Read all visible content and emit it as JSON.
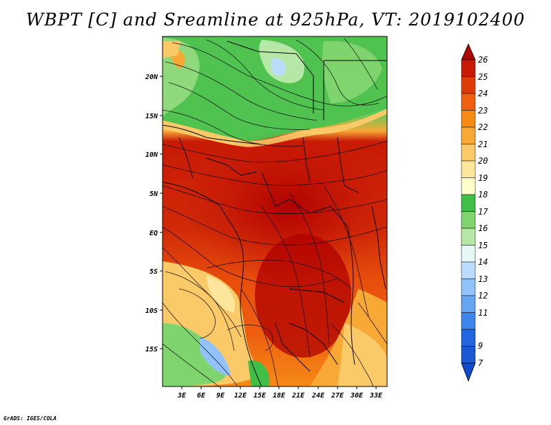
{
  "title": "WBPT [C] and Sreamline at 925hPa, VT: 2019102400",
  "credit": "GrADS: IGES/COLA",
  "map": {
    "lat_labels": [
      "20N",
      "15N",
      "10N",
      "5N",
      "EQ",
      "5S",
      "10S",
      "15S"
    ],
    "lon_labels": [
      "3E",
      "6E",
      "9E",
      "12E",
      "15E",
      "18E",
      "21E",
      "24E",
      "27E",
      "30E",
      "33E"
    ],
    "variable": "wet-bulb potential temperature",
    "level": "925hPa"
  },
  "colorbar": {
    "levels": [
      "26",
      "25",
      "24",
      "23",
      "22",
      "21",
      "20",
      "19",
      "18",
      "17",
      "16",
      "15",
      "14",
      "13",
      "12",
      "11",
      "9",
      "7"
    ],
    "colors": [
      "#b00000",
      "#c81a05",
      "#e03c0a",
      "#ee6010",
      "#f58a15",
      "#f7a835",
      "#fac968",
      "#fde69b",
      "#ffffcc",
      "#3fbe48",
      "#7fd46e",
      "#b5e8a6",
      "#e6f8f6",
      "#bcdcff",
      "#92c2fb",
      "#66a4f4",
      "#3e86ec",
      "#2066e0",
      "#0f4ccc"
    ]
  }
}
